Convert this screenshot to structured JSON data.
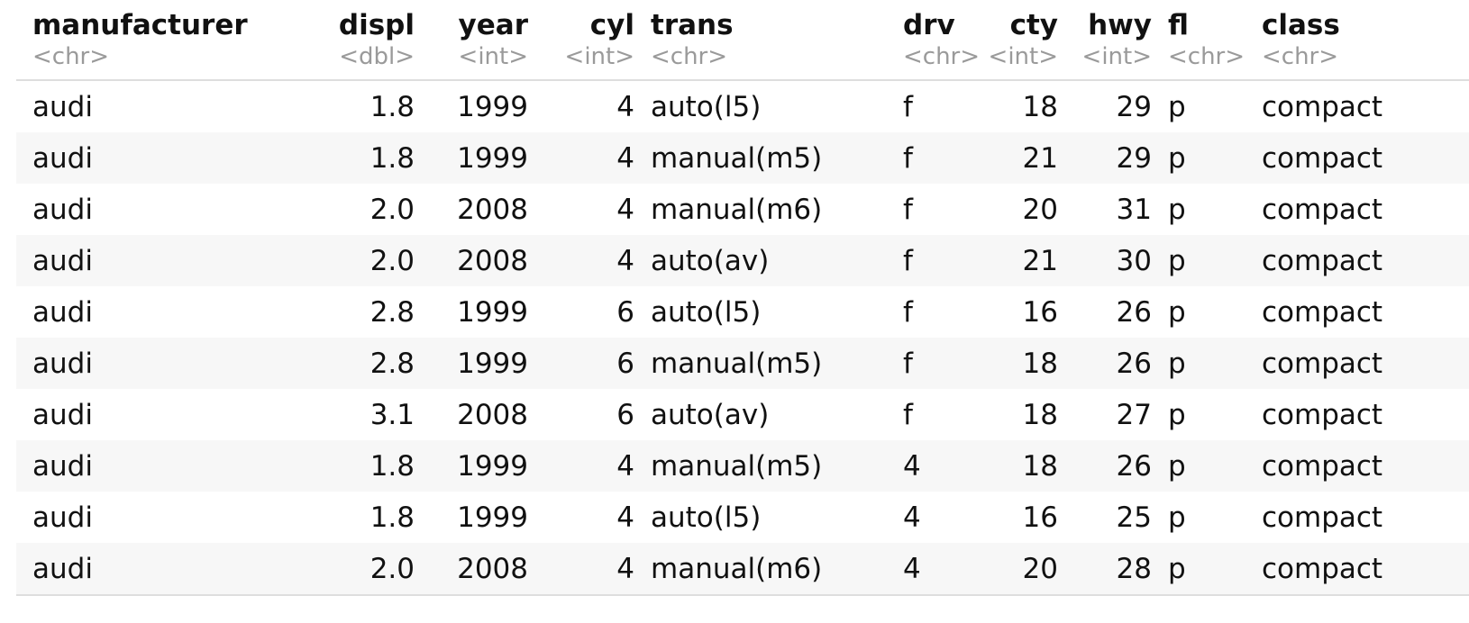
{
  "columns": [
    {
      "name": "manufacturer",
      "type": "<chr>"
    },
    {
      "name": "displ",
      "type": "<dbl>"
    },
    {
      "name": "year",
      "type": "<int>"
    },
    {
      "name": "cyl",
      "type": "<int>"
    },
    {
      "name": "trans",
      "type": "<chr>"
    },
    {
      "name": "drv",
      "type": "<chr>"
    },
    {
      "name": "cty",
      "type": "<int>"
    },
    {
      "name": "hwy",
      "type": "<int>"
    },
    {
      "name": "fl",
      "type": "<chr>"
    },
    {
      "name": "class",
      "type": "<chr>"
    }
  ],
  "rows": [
    [
      "audi",
      "1.8",
      "1999",
      "4",
      "auto(l5)",
      "f",
      "18",
      "29",
      "p",
      "compact"
    ],
    [
      "audi",
      "1.8",
      "1999",
      "4",
      "manual(m5)",
      "f",
      "21",
      "29",
      "p",
      "compact"
    ],
    [
      "audi",
      "2.0",
      "2008",
      "4",
      "manual(m6)",
      "f",
      "20",
      "31",
      "p",
      "compact"
    ],
    [
      "audi",
      "2.0",
      "2008",
      "4",
      "auto(av)",
      "f",
      "21",
      "30",
      "p",
      "compact"
    ],
    [
      "audi",
      "2.8",
      "1999",
      "6",
      "auto(l5)",
      "f",
      "16",
      "26",
      "p",
      "compact"
    ],
    [
      "audi",
      "2.8",
      "1999",
      "6",
      "manual(m5)",
      "f",
      "18",
      "26",
      "p",
      "compact"
    ],
    [
      "audi",
      "3.1",
      "2008",
      "6",
      "auto(av)",
      "f",
      "18",
      "27",
      "p",
      "compact"
    ],
    [
      "audi",
      "1.8",
      "1999",
      "4",
      "manual(m5)",
      "4",
      "18",
      "26",
      "p",
      "compact"
    ],
    [
      "audi",
      "1.8",
      "1999",
      "4",
      "auto(l5)",
      "4",
      "16",
      "25",
      "p",
      "compact"
    ],
    [
      "audi",
      "2.0",
      "2008",
      "4",
      "manual(m6)",
      "4",
      "20",
      "28",
      "p",
      "compact"
    ]
  ],
  "colors": {
    "text": "#111111",
    "type_label": "#9a9a9a",
    "stripe": "#f7f7f7",
    "rule": "#dedede"
  }
}
